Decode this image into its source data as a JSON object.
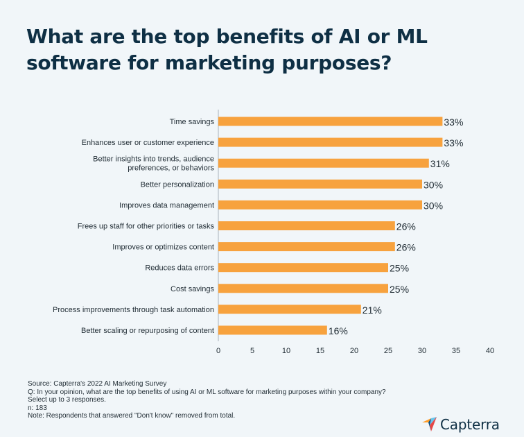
{
  "title_lines": [
    "What are the top benefits of AI or ML",
    "software for marketing purposes?"
  ],
  "chart_data": {
    "type": "bar",
    "orientation": "horizontal",
    "categories": [
      [
        "Time savings"
      ],
      [
        "Enhances user or customer experience"
      ],
      [
        "Better insights into trends, audience",
        "preferences, or behaviors"
      ],
      [
        "Better personalization"
      ],
      [
        "Improves data management"
      ],
      [
        "Frees up staff for other priorities or tasks"
      ],
      [
        "Improves or optimizes content"
      ],
      [
        "Reduces data errors"
      ],
      [
        "Cost savings"
      ],
      [
        "Process improvements through task automation"
      ],
      [
        "Better scaling or repurposing of content"
      ]
    ],
    "values": [
      33,
      33,
      31,
      30,
      30,
      26,
      26,
      25,
      25,
      21,
      16
    ],
    "value_labels": [
      "33%",
      "33%",
      "31%",
      "30%",
      "30%",
      "26%",
      "26%",
      "25%",
      "25%",
      "21%",
      "16%"
    ],
    "xlim": [
      0,
      40
    ],
    "xticks": [
      0,
      5,
      10,
      15,
      20,
      25,
      30,
      35,
      40
    ],
    "bar_color": "#f7a23e",
    "grid": false
  },
  "notes": [
    "Source: Capterra's 2022 AI Marketing Survey",
    "Q: In your opinion, what are the top benefits of using AI or ML software for marketing purposes within your company?",
    "Select up to 3 responses.",
    "n: 183",
    "Note: Respondents that answered \"Don't know\" removed from total."
  ],
  "brand": {
    "name": "Capterra",
    "logo_icon": "capterra-arrow-logo",
    "logo_colors": [
      "#ff9d28",
      "#68c5ed",
      "#044d80",
      "#e54747"
    ]
  }
}
